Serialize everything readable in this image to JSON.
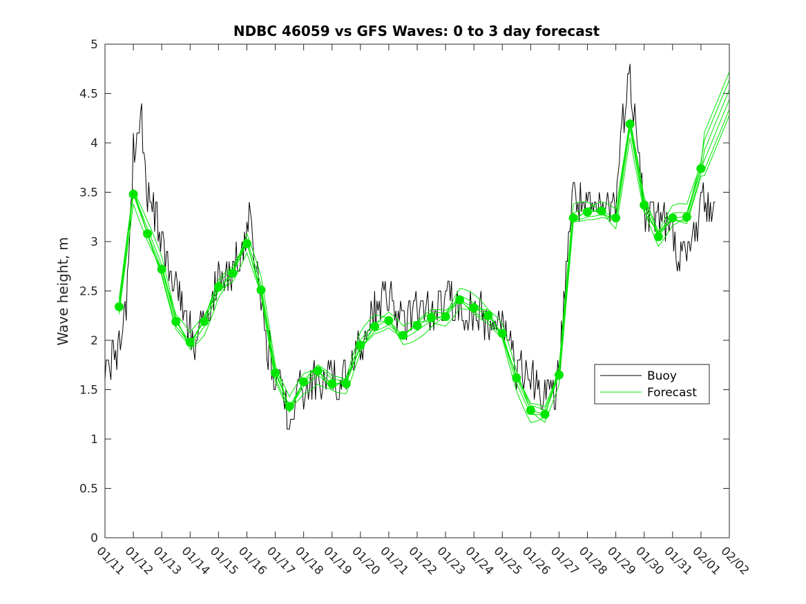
{
  "chart_data": {
    "type": "line",
    "title": "NDBC 46059 vs GFS Waves: 0 to 3 day forecast",
    "xlabel": "",
    "ylabel": "Wave height, m",
    "ylim": [
      0,
      5
    ],
    "yticks": [
      "0",
      "0.5",
      "1",
      "1.5",
      "2",
      "2.5",
      "3",
      "3.5",
      "4",
      "4.5",
      "5"
    ],
    "xlim": [
      "01/11",
      "02/02"
    ],
    "xticks": [
      "01/11",
      "01/12",
      "01/13",
      "01/14",
      "01/15",
      "01/16",
      "01/17",
      "01/18",
      "01/19",
      "01/20",
      "01/21",
      "01/22",
      "01/23",
      "01/24",
      "01/25",
      "01/26",
      "01/27",
      "01/28",
      "01/29",
      "01/30",
      "01/31",
      "02/01",
      "02/02"
    ],
    "grid": false,
    "legend": {
      "placement": "right",
      "entries": [
        "Buoy",
        "Forecast"
      ]
    },
    "colors": {
      "buoy": "#000000",
      "forecast": "#00e600",
      "markers": "#00e600"
    },
    "series": [
      {
        "name": "Buoy",
        "x": [
          "01/11 00:00",
          "01/11 12:00",
          "01/11 18:00",
          "01/12 00:00",
          "01/12 06:00",
          "01/12 12:00",
          "01/13 00:00",
          "01/13 12:00",
          "01/14 00:00",
          "01/14 06:00",
          "01/14 12:00",
          "01/15 00:00",
          "01/15 12:00",
          "01/16 00:00",
          "01/16 03:00",
          "01/16 06:00",
          "01/16 12:00",
          "01/17 00:00",
          "01/17 12:00",
          "01/18 00:00",
          "01/18 12:00",
          "01/19 00:00",
          "01/19 12:00",
          "01/20 00:00",
          "01/20 12:00",
          "01/21 00:00",
          "01/21 12:00",
          "01/22 00:00",
          "01/22 12:00",
          "01/23 00:00",
          "01/23 12:00",
          "01/24 00:00",
          "01/24 12:00",
          "01/25 00:00",
          "01/25 12:00",
          "01/26 00:00",
          "01/26 12:00",
          "01/26 18:00",
          "01/27 00:00",
          "01/27 06:00",
          "01/27 12:00",
          "01/28 00:00",
          "01/28 12:00",
          "01/29 00:00",
          "01/29 06:00",
          "01/29 12:00",
          "01/29 18:00",
          "01/30 00:00",
          "01/30 12:00",
          "01/31 00:00",
          "01/31 12:00",
          "02/01 00:00",
          "02/01 06:00",
          "02/01 12:00"
        ],
        "values": [
          1.8,
          1.9,
          2.4,
          3.9,
          4.3,
          3.5,
          3.0,
          2.6,
          2.1,
          1.9,
          2.3,
          2.6,
          2.7,
          3.1,
          3.3,
          3.0,
          2.3,
          1.6,
          1.3,
          1.5,
          1.6,
          1.6,
          1.6,
          2.0,
          2.3,
          2.5,
          2.2,
          2.3,
          2.3,
          2.4,
          2.3,
          2.3,
          2.2,
          2.2,
          1.7,
          1.6,
          1.5,
          1.4,
          1.6,
          2.8,
          3.5,
          3.3,
          3.3,
          3.4,
          4.3,
          4.6,
          4.2,
          3.3,
          3.3,
          3.0,
          2.8,
          3.4,
          3.4,
          3.2
        ]
      },
      {
        "name": "Forecast",
        "x": [
          "01/11 12:00",
          "01/12 00:00",
          "01/12 12:00",
          "01/13 00:00",
          "01/13 12:00",
          "01/14 00:00",
          "01/14 12:00",
          "01/15 00:00",
          "01/15 12:00",
          "01/16 00:00",
          "01/16 12:00",
          "01/17 00:00",
          "01/17 12:00",
          "01/18 00:00",
          "01/18 12:00",
          "01/19 00:00",
          "01/19 12:00",
          "01/20 00:00",
          "01/20 12:00",
          "01/21 00:00",
          "01/21 12:00",
          "01/22 00:00",
          "01/22 12:00",
          "01/23 00:00",
          "01/23 12:00",
          "01/24 00:00",
          "01/24 12:00",
          "01/25 00:00",
          "01/25 12:00",
          "01/26 00:00",
          "01/26 12:00",
          "01/27 00:00",
          "01/27 12:00",
          "01/28 00:00",
          "01/28 12:00",
          "01/29 00:00",
          "01/29 12:00",
          "01/30 00:00",
          "01/30 12:00",
          "01/31 00:00",
          "01/31 12:00",
          "02/01 00:00"
        ],
        "values": [
          2.34,
          3.48,
          3.08,
          2.72,
          2.19,
          1.98,
          2.19,
          2.54,
          2.68,
          2.98,
          2.51,
          1.67,
          1.33,
          1.58,
          1.69,
          1.56,
          1.56,
          1.95,
          2.14,
          2.2,
          2.05,
          2.15,
          2.23,
          2.24,
          2.41,
          2.33,
          2.25,
          2.07,
          1.62,
          1.29,
          1.25,
          1.65,
          3.24,
          3.3,
          3.31,
          3.24,
          4.19,
          3.37,
          3.05,
          3.24,
          3.25,
          3.74
        ]
      }
    ]
  }
}
